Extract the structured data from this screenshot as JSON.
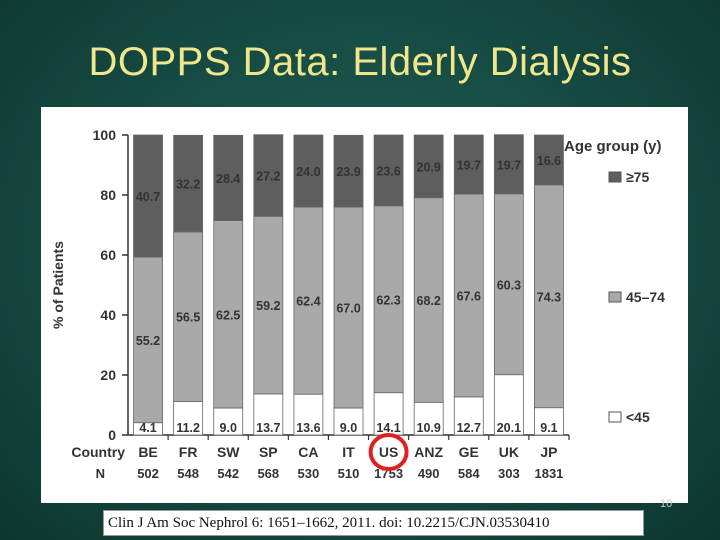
{
  "slide": {
    "title": "DOPPS Data: Elderly Dialysis",
    "citation": "Clin J Am Soc Nephrol 6: 1651–1662, 2011. doi: 10.2215/CJN.03530410",
    "slide_number": "10"
  },
  "chart_data": {
    "type": "bar",
    "stacked": true,
    "ylabel": "% of Patients",
    "ylim": [
      0,
      100
    ],
    "yticks": [
      0,
      20,
      40,
      60,
      80,
      100
    ],
    "category_row_label": "Country",
    "n_row_label": "N",
    "categories": [
      "BE",
      "FR",
      "SW",
      "SP",
      "CA",
      "IT",
      "US",
      "ANZ",
      "GE",
      "UK",
      "JP"
    ],
    "n_values": [
      "502",
      "548",
      "542",
      "568",
      "530",
      "510",
      "1753",
      "490",
      "584",
      "303",
      "1831"
    ],
    "highlighted_category": "US",
    "legend_title": "Age group (y)",
    "legend_position": "right",
    "series": [
      {
        "name": "<45",
        "color": "#ffffff",
        "values": [
          4.1,
          11.2,
          9.0,
          13.7,
          13.6,
          9.0,
          14.1,
          10.9,
          12.7,
          20.1,
          9.1
        ]
      },
      {
        "name": "45–74",
        "color": "#a9a9a9",
        "values": [
          55.2,
          56.5,
          62.5,
          59.2,
          62.4,
          67.0,
          62.3,
          68.2,
          67.6,
          60.3,
          74.3
        ]
      },
      {
        "name": "≥75",
        "color": "#5e5e5e",
        "values": [
          40.7,
          32.2,
          28.4,
          27.2,
          24.0,
          23.9,
          23.6,
          20.9,
          19.7,
          19.7,
          16.6
        ]
      }
    ],
    "grid": false
  }
}
